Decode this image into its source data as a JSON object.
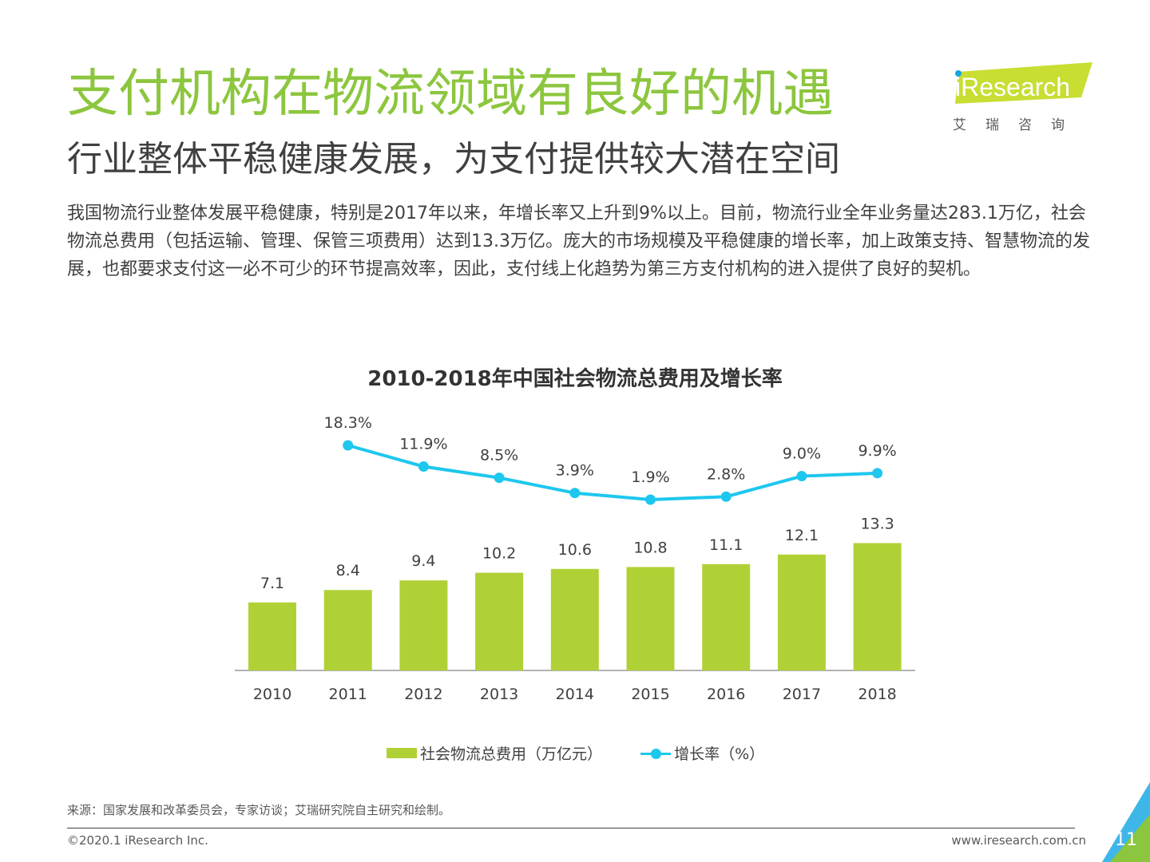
{
  "header": {
    "title": "支付机构在物流领域有良好的机遇",
    "subtitle": "行业整体平稳健康发展，为支付提供较大潜在空间"
  },
  "logo": {
    "name": "iResearch",
    "sub": "艾瑞咨询"
  },
  "body": "我国物流行业整体发展平稳健康，特别是2017年以来，年增长率又上升到9%以上。目前，物流行业全年业务量达283.1万亿，社会物流总费用（包括运输、管理、保管三项费用）达到13.3万亿。庞大的市场规模及平稳健康的增长率，加上政策支持、智慧物流的发展，也都要求支付这一必不可少的环节提高效率，因此，支付线上化趋势为第三方支付机构的进入提供了良好的契机。",
  "chart_data": {
    "type": "bar",
    "title": "2010-2018年中国社会物流总费用及增长率",
    "categories": [
      "2010",
      "2011",
      "2012",
      "2013",
      "2014",
      "2015",
      "2016",
      "2017",
      "2018"
    ],
    "series": [
      {
        "name": "社会物流总费用（万亿元）",
        "type": "bar",
        "color": "#b0d136",
        "values": [
          7.1,
          8.4,
          9.4,
          10.2,
          10.6,
          10.8,
          11.1,
          12.1,
          13.3
        ],
        "labels": [
          "7.1",
          "8.4",
          "9.4",
          "10.2",
          "10.6",
          "10.8",
          "11.1",
          "12.1",
          "13.3"
        ]
      },
      {
        "name": "增长率（%）",
        "type": "line",
        "color": "#1ec7ee",
        "values": [
          null,
          18.3,
          11.9,
          8.5,
          3.9,
          1.9,
          2.8,
          9.0,
          9.9
        ],
        "labels": [
          null,
          "18.3%",
          "11.9%",
          "8.5%",
          "3.9%",
          "1.9%",
          "2.8%",
          "9.0%",
          "9.9%"
        ]
      }
    ],
    "legend": "bottom",
    "grid": false
  },
  "footer": {
    "source": "来源：国家发展和改革委员会，专家访谈；艾瑞研究院自主研究和绘制。",
    "copyright": "©2020.1 iResearch Inc.",
    "website": "www.iresearch.com.cn",
    "page": "11"
  }
}
